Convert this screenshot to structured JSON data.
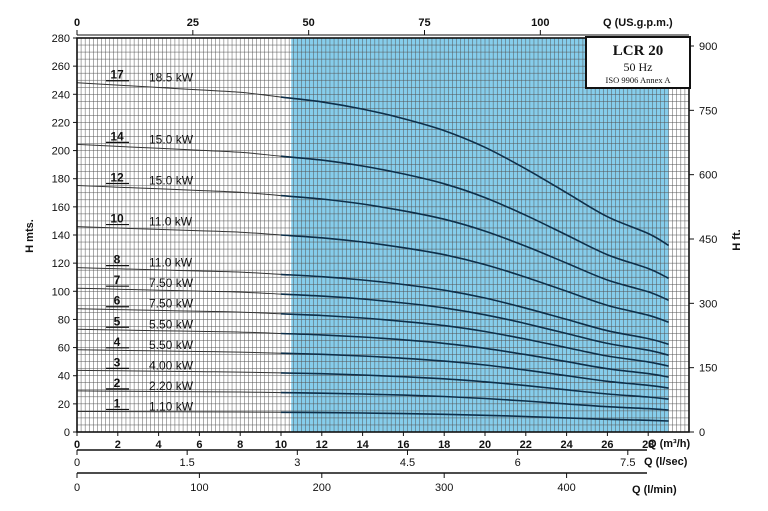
{
  "chart_data": {
    "type": "line",
    "title": "LCR 20",
    "subtitle": "50 Hz",
    "standard": "ISO 9906 Annex A",
    "xlabel": "Q (m³/h)",
    "ylabel": "H mts.",
    "ylabel_right": "H ft.",
    "xlim": [
      0,
      30
    ],
    "ylim": [
      0,
      280
    ],
    "x_ticks": [
      0,
      2,
      4,
      6,
      8,
      10,
      12,
      14,
      16,
      18,
      20,
      22,
      24,
      26,
      28
    ],
    "y_ticks": [
      0,
      20,
      40,
      60,
      80,
      100,
      120,
      140,
      160,
      180,
      200,
      220,
      240,
      260,
      280
    ],
    "top_axis": {
      "label": "Q (US.g.p.m.)",
      "ticks": [
        0,
        25,
        50,
        75,
        100
      ]
    },
    "right_axis": {
      "label": "H ft.",
      "ticks": [
        0,
        150,
        300,
        450,
        600,
        750,
        900
      ]
    },
    "lps_axis": {
      "label": "Q (l/sec)",
      "ticks": [
        "0",
        "1.5",
        "3",
        "4.5",
        "6",
        "7.5"
      ]
    },
    "lpm_axis": {
      "label": "Q (l/min)",
      "ticks": [
        "0",
        "100",
        "200",
        "300",
        "400"
      ]
    },
    "operating_range": [
      10.5,
      29
    ],
    "curves_x": [
      0,
      2,
      4,
      6,
      8,
      10,
      12,
      14,
      16,
      18,
      20,
      22,
      24,
      26,
      28,
      29
    ],
    "series": [
      {
        "stage": "1",
        "power": "1.10 kW",
        "values": [
          14.6,
          14.5,
          14.4,
          14.3,
          14.2,
          14.0,
          13.8,
          13.5,
          13.1,
          12.6,
          11.9,
          11.0,
          10.0,
          9.0,
          8.3,
          7.8
        ]
      },
      {
        "stage": "2",
        "power": "2.20 kW",
        "values": [
          29.2,
          29.0,
          28.8,
          28.6,
          28.4,
          28.0,
          27.6,
          27.0,
          26.2,
          25.2,
          23.8,
          22.0,
          20.0,
          18.0,
          16.6,
          15.6
        ]
      },
      {
        "stage": "3",
        "power": "4.00 kW",
        "values": [
          43.8,
          43.5,
          43.2,
          42.9,
          42.6,
          42.0,
          41.4,
          40.5,
          39.3,
          37.8,
          35.7,
          33.0,
          30.0,
          27.0,
          24.9,
          23.4
        ]
      },
      {
        "stage": "4",
        "power": "5.50 kW",
        "values": [
          58.4,
          58.0,
          57.6,
          57.2,
          56.8,
          56.0,
          55.2,
          54.0,
          52.4,
          50.4,
          47.6,
          44.0,
          40.0,
          36.0,
          33.2,
          31.2
        ]
      },
      {
        "stage": "5",
        "power": "5.50 kW",
        "values": [
          73.0,
          72.5,
          72.0,
          71.5,
          71.0,
          70.0,
          69.0,
          67.5,
          65.5,
          63.0,
          59.5,
          55.0,
          50.0,
          45.0,
          41.5,
          39.0
        ]
      },
      {
        "stage": "6",
        "power": "7.50 kW",
        "values": [
          87.6,
          87.0,
          86.4,
          85.8,
          85.2,
          84.0,
          82.8,
          81.0,
          78.6,
          75.6,
          71.4,
          66.0,
          60.0,
          54.0,
          49.8,
          46.8
        ]
      },
      {
        "stage": "7",
        "power": "7.50 kW",
        "values": [
          102.2,
          101.5,
          100.8,
          100.1,
          99.4,
          98.0,
          96.6,
          94.5,
          91.7,
          88.2,
          83.3,
          77.0,
          70.0,
          63.0,
          58.1,
          54.6
        ]
      },
      {
        "stage": "8",
        "power": "11.0 kW",
        "values": [
          116.8,
          116.0,
          115.2,
          114.4,
          113.6,
          112.0,
          110.4,
          108.0,
          104.8,
          100.8,
          95.2,
          88.0,
          80.0,
          72.0,
          66.4,
          62.4
        ]
      },
      {
        "stage": "10",
        "power": "11.0 kW",
        "values": [
          146.0,
          145.0,
          144.0,
          143.0,
          142.0,
          140.0,
          138.0,
          135.0,
          131.0,
          126.0,
          119.0,
          110.0,
          100.0,
          90.0,
          83.0,
          78.0
        ]
      },
      {
        "stage": "12",
        "power": "15.0 kW",
        "values": [
          175.2,
          174.0,
          172.8,
          171.6,
          170.4,
          168.0,
          165.6,
          162.0,
          157.2,
          151.2,
          142.8,
          132.0,
          120.0,
          108.0,
          99.6,
          93.6
        ]
      },
      {
        "stage": "14",
        "power": "15.0 kW",
        "values": [
          204.4,
          203.0,
          201.6,
          200.2,
          198.8,
          196.0,
          193.2,
          189.0,
          183.4,
          176.4,
          166.6,
          154.0,
          140.0,
          126.0,
          116.2,
          109.2
        ]
      },
      {
        "stage": "17",
        "power": "18.5 kW",
        "values": [
          248.2,
          246.5,
          244.8,
          243.1,
          241.4,
          238.0,
          234.6,
          229.5,
          222.7,
          214.2,
          202.3,
          187.0,
          170.0,
          153.0,
          141.1,
          132.6
        ]
      }
    ]
  }
}
